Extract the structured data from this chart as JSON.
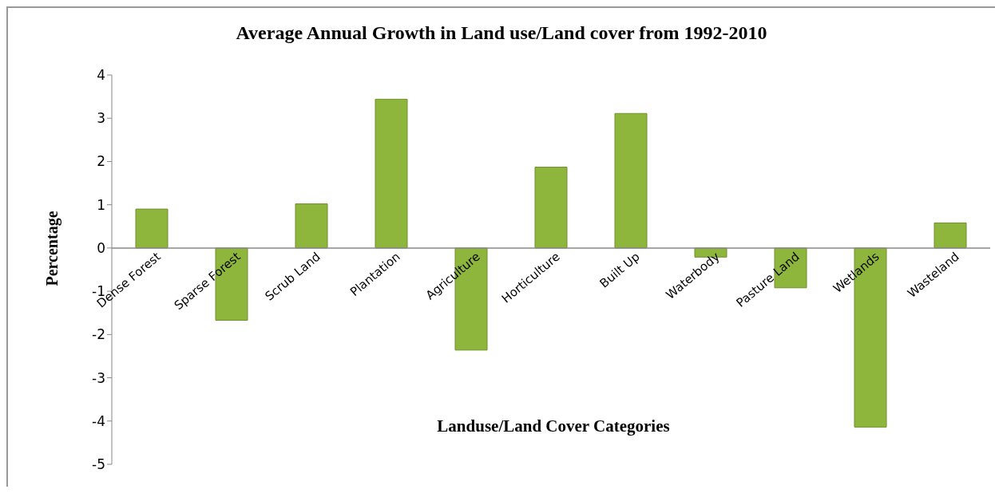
{
  "chart_data": {
    "type": "bar",
    "title": "Average Annual Growth in Land use/Land cover from 1992-2010",
    "xlabel": "Landuse/Land Cover Categories",
    "ylabel": "Percentage",
    "categories": [
      "Dense Forest",
      "Sparse Forest",
      "Scrub Land",
      "Plantation",
      "Agriculture",
      "Horticulture",
      "Built Up",
      "Waterbody",
      "Pasture Land",
      "Wetlands",
      "Wasteland"
    ],
    "values": [
      0.9,
      -1.67,
      1.02,
      3.44,
      -2.36,
      1.87,
      3.11,
      -0.21,
      -0.92,
      -4.14,
      0.58
    ],
    "color": "#8fb63c",
    "ylim": [
      -5,
      4
    ],
    "yticks": [
      -5,
      -4,
      -3,
      -2,
      -1,
      0,
      1,
      2,
      3,
      4
    ],
    "grid": false,
    "legend": false
  }
}
